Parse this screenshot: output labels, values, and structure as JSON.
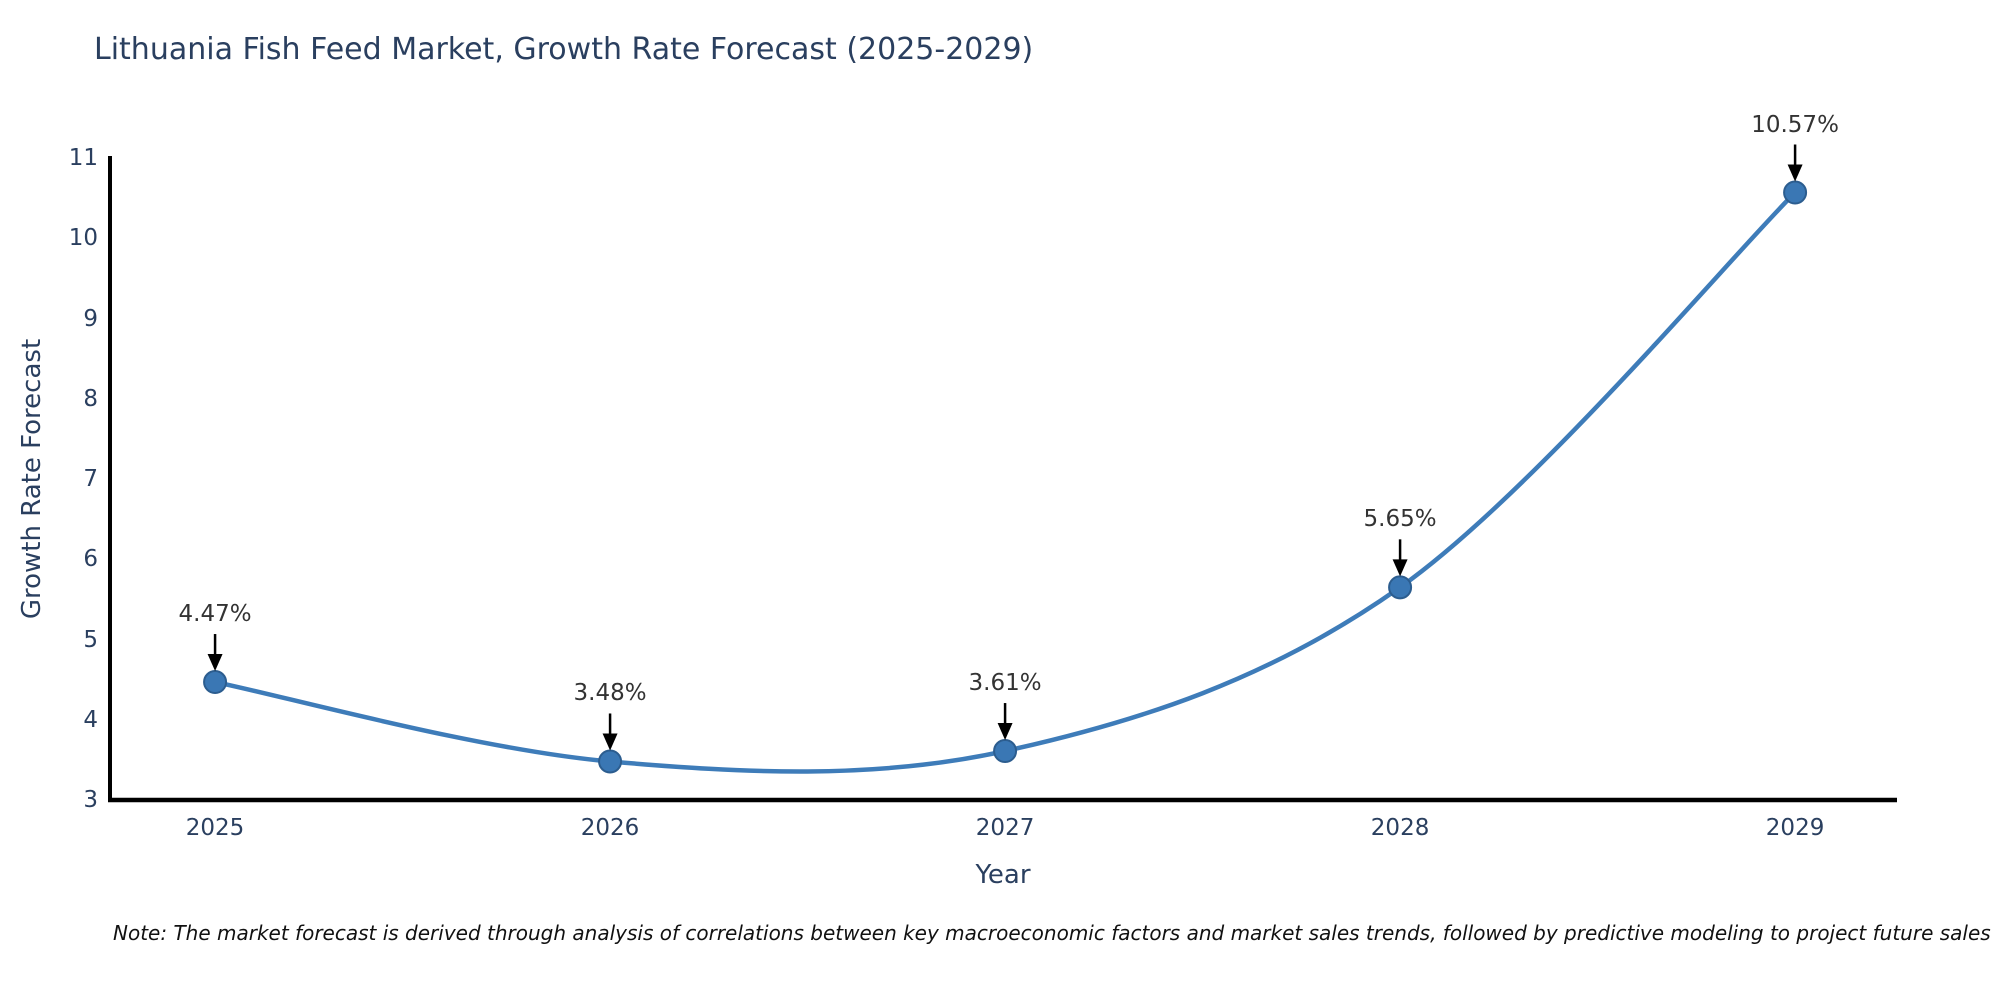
{
  "page": {
    "note": "Note: The market forecast is derived through analysis of correlations between key macroeconomic factors and market sales trends, followed by predictive modeling to project future sales"
  },
  "chart_data": {
    "type": "line",
    "title": "Lithuania Fish Feed Market, Growth Rate Forecast (2025-2029)",
    "xlabel": "Year",
    "ylabel": "Growth Rate Forecast",
    "x": [
      2025,
      2026,
      2027,
      2028,
      2029
    ],
    "x_tick_labels": [
      "2025",
      "2026",
      "2027",
      "2028",
      "2029"
    ],
    "values": [
      4.47,
      3.48,
      3.61,
      5.65,
      10.57
    ],
    "point_labels": [
      "4.47%",
      "3.48%",
      "3.61%",
      "5.65%",
      "10.57%"
    ],
    "yticks": [
      3,
      4,
      5,
      6,
      7,
      8,
      9,
      10,
      11
    ],
    "ylim": [
      3,
      11
    ],
    "xlim": [
      2024.734,
      2029.258
    ],
    "grid": false,
    "legend": "none",
    "line_shape": "spline",
    "colors": {
      "line": "#3e7cb9",
      "marker": "#3a77b4",
      "marker_edge": "#2c5d8f",
      "axis": "#000000",
      "title_text": "#2a3f5f",
      "tick_text": "#2a3f5f",
      "annotation_text": "#333333",
      "arrow": "#000000"
    }
  }
}
